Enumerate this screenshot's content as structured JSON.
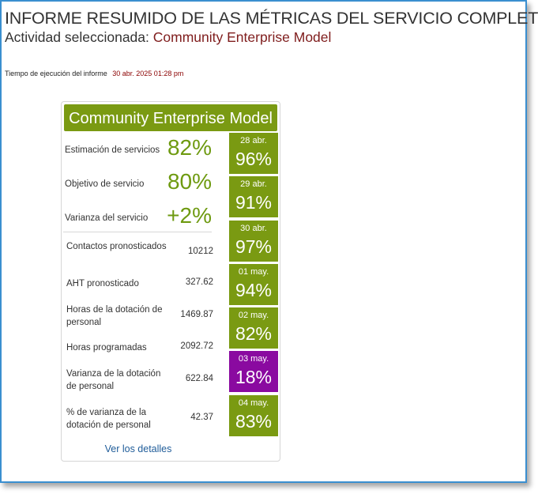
{
  "report": {
    "title": "INFORME RESUMIDO DE LAS MÉTRICAS DEL SERVICIO COMPLETO",
    "activity_label": "Actividad seleccionada:",
    "activity_value": "Community Enterprise Model",
    "runtime_label": "Tiempo de ejecución del informe",
    "runtime_value": "30 abr. 2025 01:28 pm"
  },
  "card": {
    "title": "Community Enterprise Model",
    "kpis": [
      {
        "label": "Estimación de servicios",
        "value": "82%"
      },
      {
        "label": "Objetivo de servicio",
        "value": "80%"
      },
      {
        "label": "Varianza del servicio",
        "value": "+2%"
      }
    ],
    "stats": [
      {
        "label": "Contactos pronosticados",
        "value": "10212"
      },
      {
        "label": "AHT pronosticado",
        "value": "327.62"
      },
      {
        "label": "Horas de la dotación de personal",
        "value": "1469.87"
      },
      {
        "label": "Horas programadas",
        "value": "2092.72"
      },
      {
        "label": "Varianza de la dotación de personal",
        "value": "622.84"
      },
      {
        "label": "% de varianza de la dotación de personal",
        "value": "42.37"
      }
    ],
    "days": [
      {
        "label": "28 abr.",
        "value": "96%",
        "color": "#7a9a12"
      },
      {
        "label": "29 abr.",
        "value": "91%",
        "color": "#7a9a12"
      },
      {
        "label": "30 abr.",
        "value": "97%",
        "color": "#7a9a12"
      },
      {
        "label": "01 may.",
        "value": "94%",
        "color": "#7a9a12"
      },
      {
        "label": "02 may.",
        "value": "82%",
        "color": "#7a9a12"
      },
      {
        "label": "03 may.",
        "value": "18%",
        "color": "#8a0aa0"
      },
      {
        "label": "04 may.",
        "value": "83%",
        "color": "#7a9a12"
      }
    ],
    "details_link": "Ver los detalles"
  },
  "colors": {
    "accent_green": "#7a9a12",
    "alert_purple": "#8a0aa0",
    "activity_red": "#7f1d1d",
    "frame_blue": "#3a8fd0"
  }
}
